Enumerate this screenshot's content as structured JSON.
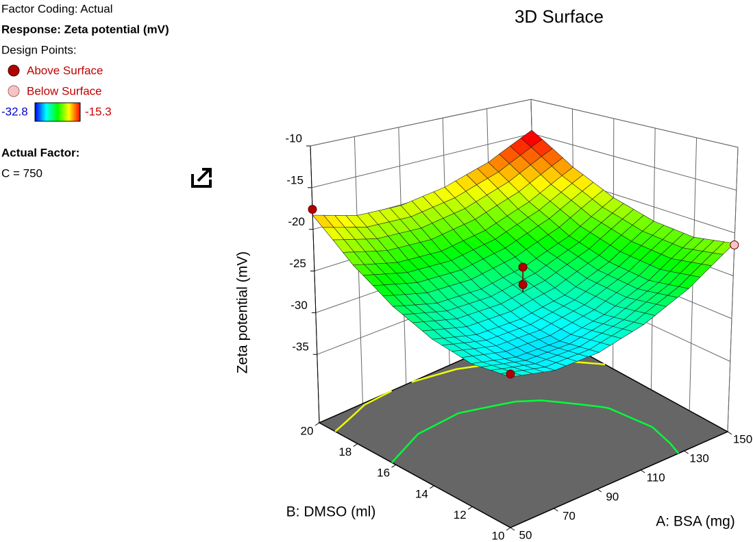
{
  "chart_data": {
    "type": "surface3d",
    "title": "3D Surface",
    "factor_coding": "Factor Coding: Actual",
    "response": "Response: Zeta potential (mV)",
    "design_points_title": "Design Points:",
    "colorbar_min": -32.8,
    "colorbar_max": -15.3,
    "actual_factor_title": "Actual Factor:",
    "actual_factor": "C = 750",
    "xlabel": "A: BSA (mg)",
    "ylabel": "B: DMSO (ml)",
    "zlabel": "Zeta potential (mV)",
    "xlim": [
      50,
      150
    ],
    "ylim": [
      10,
      20
    ],
    "zlim": [
      -43.2,
      -10
    ],
    "xticks": [
      50,
      70,
      90,
      110,
      130,
      150
    ],
    "yticks": [
      10,
      12,
      14,
      16,
      18,
      20
    ],
    "zticks": [
      -35,
      -30,
      -25,
      -20,
      -15,
      -10
    ],
    "grid": true,
    "x": [
      50,
      70,
      90,
      110,
      130,
      150
    ],
    "y": [
      10,
      12,
      14,
      16,
      18,
      20
    ],
    "z": [
      [
        -27.5,
        -28.5,
        -28.3,
        -27.0,
        -24.7,
        -21.2
      ],
      [
        -27.9,
        -28.9,
        -28.9,
        -27.7,
        -25.5,
        -22.1
      ],
      [
        -27.1,
        -28.3,
        -28.3,
        -27.3,
        -25.1,
        -21.8
      ],
      [
        -25.3,
        -26.6,
        -26.7,
        -25.7,
        -23.7,
        -20.5
      ],
      [
        -22.4,
        -23.7,
        -24.0,
        -23.1,
        -21.1,
        -18.1
      ],
      [
        -18.3,
        -19.8,
        -20.1,
        -19.3,
        -17.5,
        -14.5
      ]
    ],
    "series": [
      {
        "name": "Above Surface",
        "color": "#b00000",
        "x": [
          50,
          100,
          100,
          50
        ],
        "y": [
          20,
          15,
          15,
          10
        ],
        "z": [
          -17.6,
          -24.0,
          -26.1,
          -27.2
        ]
      },
      {
        "name": "Below Surface",
        "color": "#f6c4c4",
        "x": [
          150
        ],
        "y": [
          10
        ],
        "z": [
          -21.4
        ]
      }
    ]
  }
}
